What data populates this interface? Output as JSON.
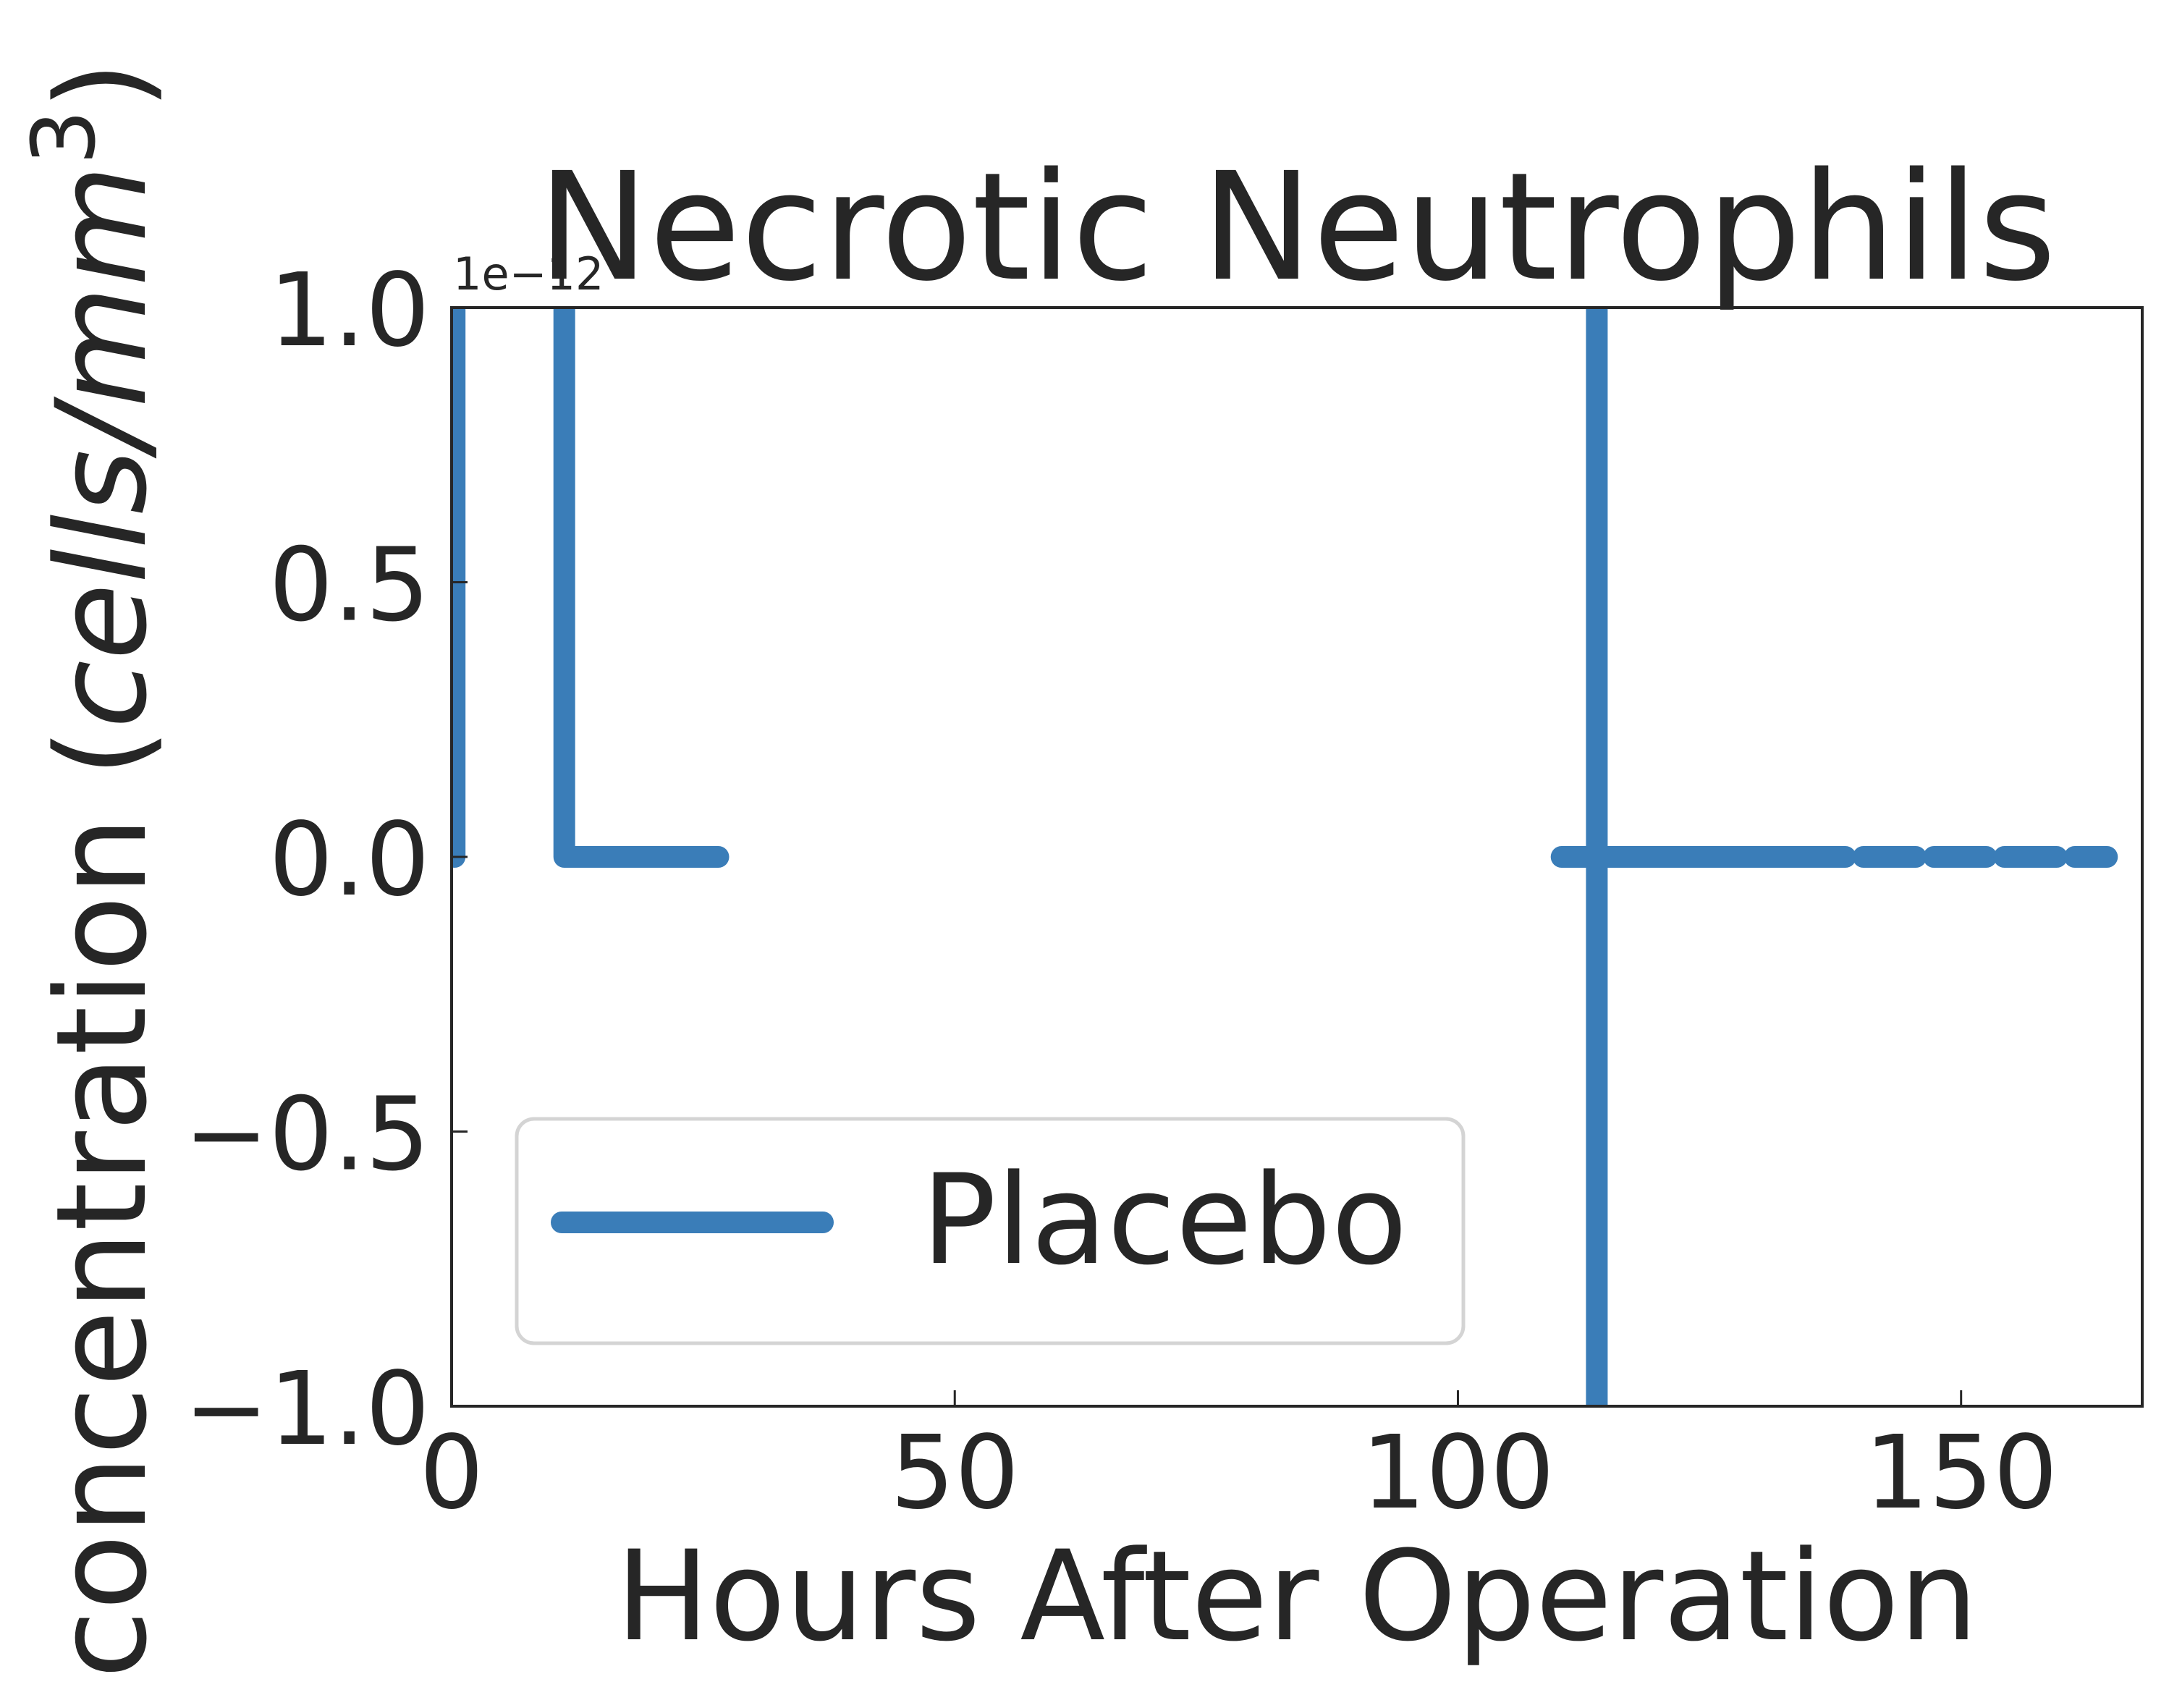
{
  "chart_data": {
    "type": "line",
    "title": "Necrotic Neutrophils",
    "xlabel": "Hours After Operation",
    "ylabel": "concentration (cells/mm³)",
    "ylabel_parts": {
      "prefix": "concentration (",
      "unit_italic": "cells/mm",
      "superscript": "3",
      "suffix": ")"
    },
    "y_offset_text": "1e−12",
    "xlim": [
      0,
      168
    ],
    "ylim": [
      -1.0,
      1.0
    ],
    "x_ticks": [
      0,
      50,
      100,
      150
    ],
    "x_tick_labels": [
      "0",
      "50",
      "100",
      "150"
    ],
    "y_ticks": [
      -1.0,
      -0.5,
      0.0,
      0.5,
      1.0
    ],
    "y_tick_labels": [
      "−1.0",
      "−0.5",
      "0.0",
      "0.5",
      "1.0"
    ],
    "grid": false,
    "legend_position": "lower-left",
    "series": [
      {
        "name": "Placebo",
        "color": "#3a7db8",
        "segments": [
          {
            "x": [
              0.3,
              0.3
            ],
            "y": [
              0.0,
              1.05
            ]
          },
          {
            "x": [
              11.2,
              11.2,
              26.5
            ],
            "y": [
              1.05,
              0.0,
              0.0
            ]
          },
          {
            "x": [
              113.8,
              113.8
            ],
            "y": [
              1.05,
              -1.05
            ]
          },
          {
            "x": [
              110.3,
              138.5
            ],
            "y": [
              0.0,
              0.0
            ]
          },
          {
            "x": [
              140.3,
              145.5
            ],
            "y": [
              0.0,
              0.0
            ]
          },
          {
            "x": [
              147.3,
              152.5
            ],
            "y": [
              0.0,
              0.0
            ]
          },
          {
            "x": [
              154.3,
              159.5
            ],
            "y": [
              0.0,
              0.0
            ]
          },
          {
            "x": [
              161.3,
              164.5
            ],
            "y": [
              0.0,
              0.0
            ]
          }
        ]
      }
    ]
  }
}
